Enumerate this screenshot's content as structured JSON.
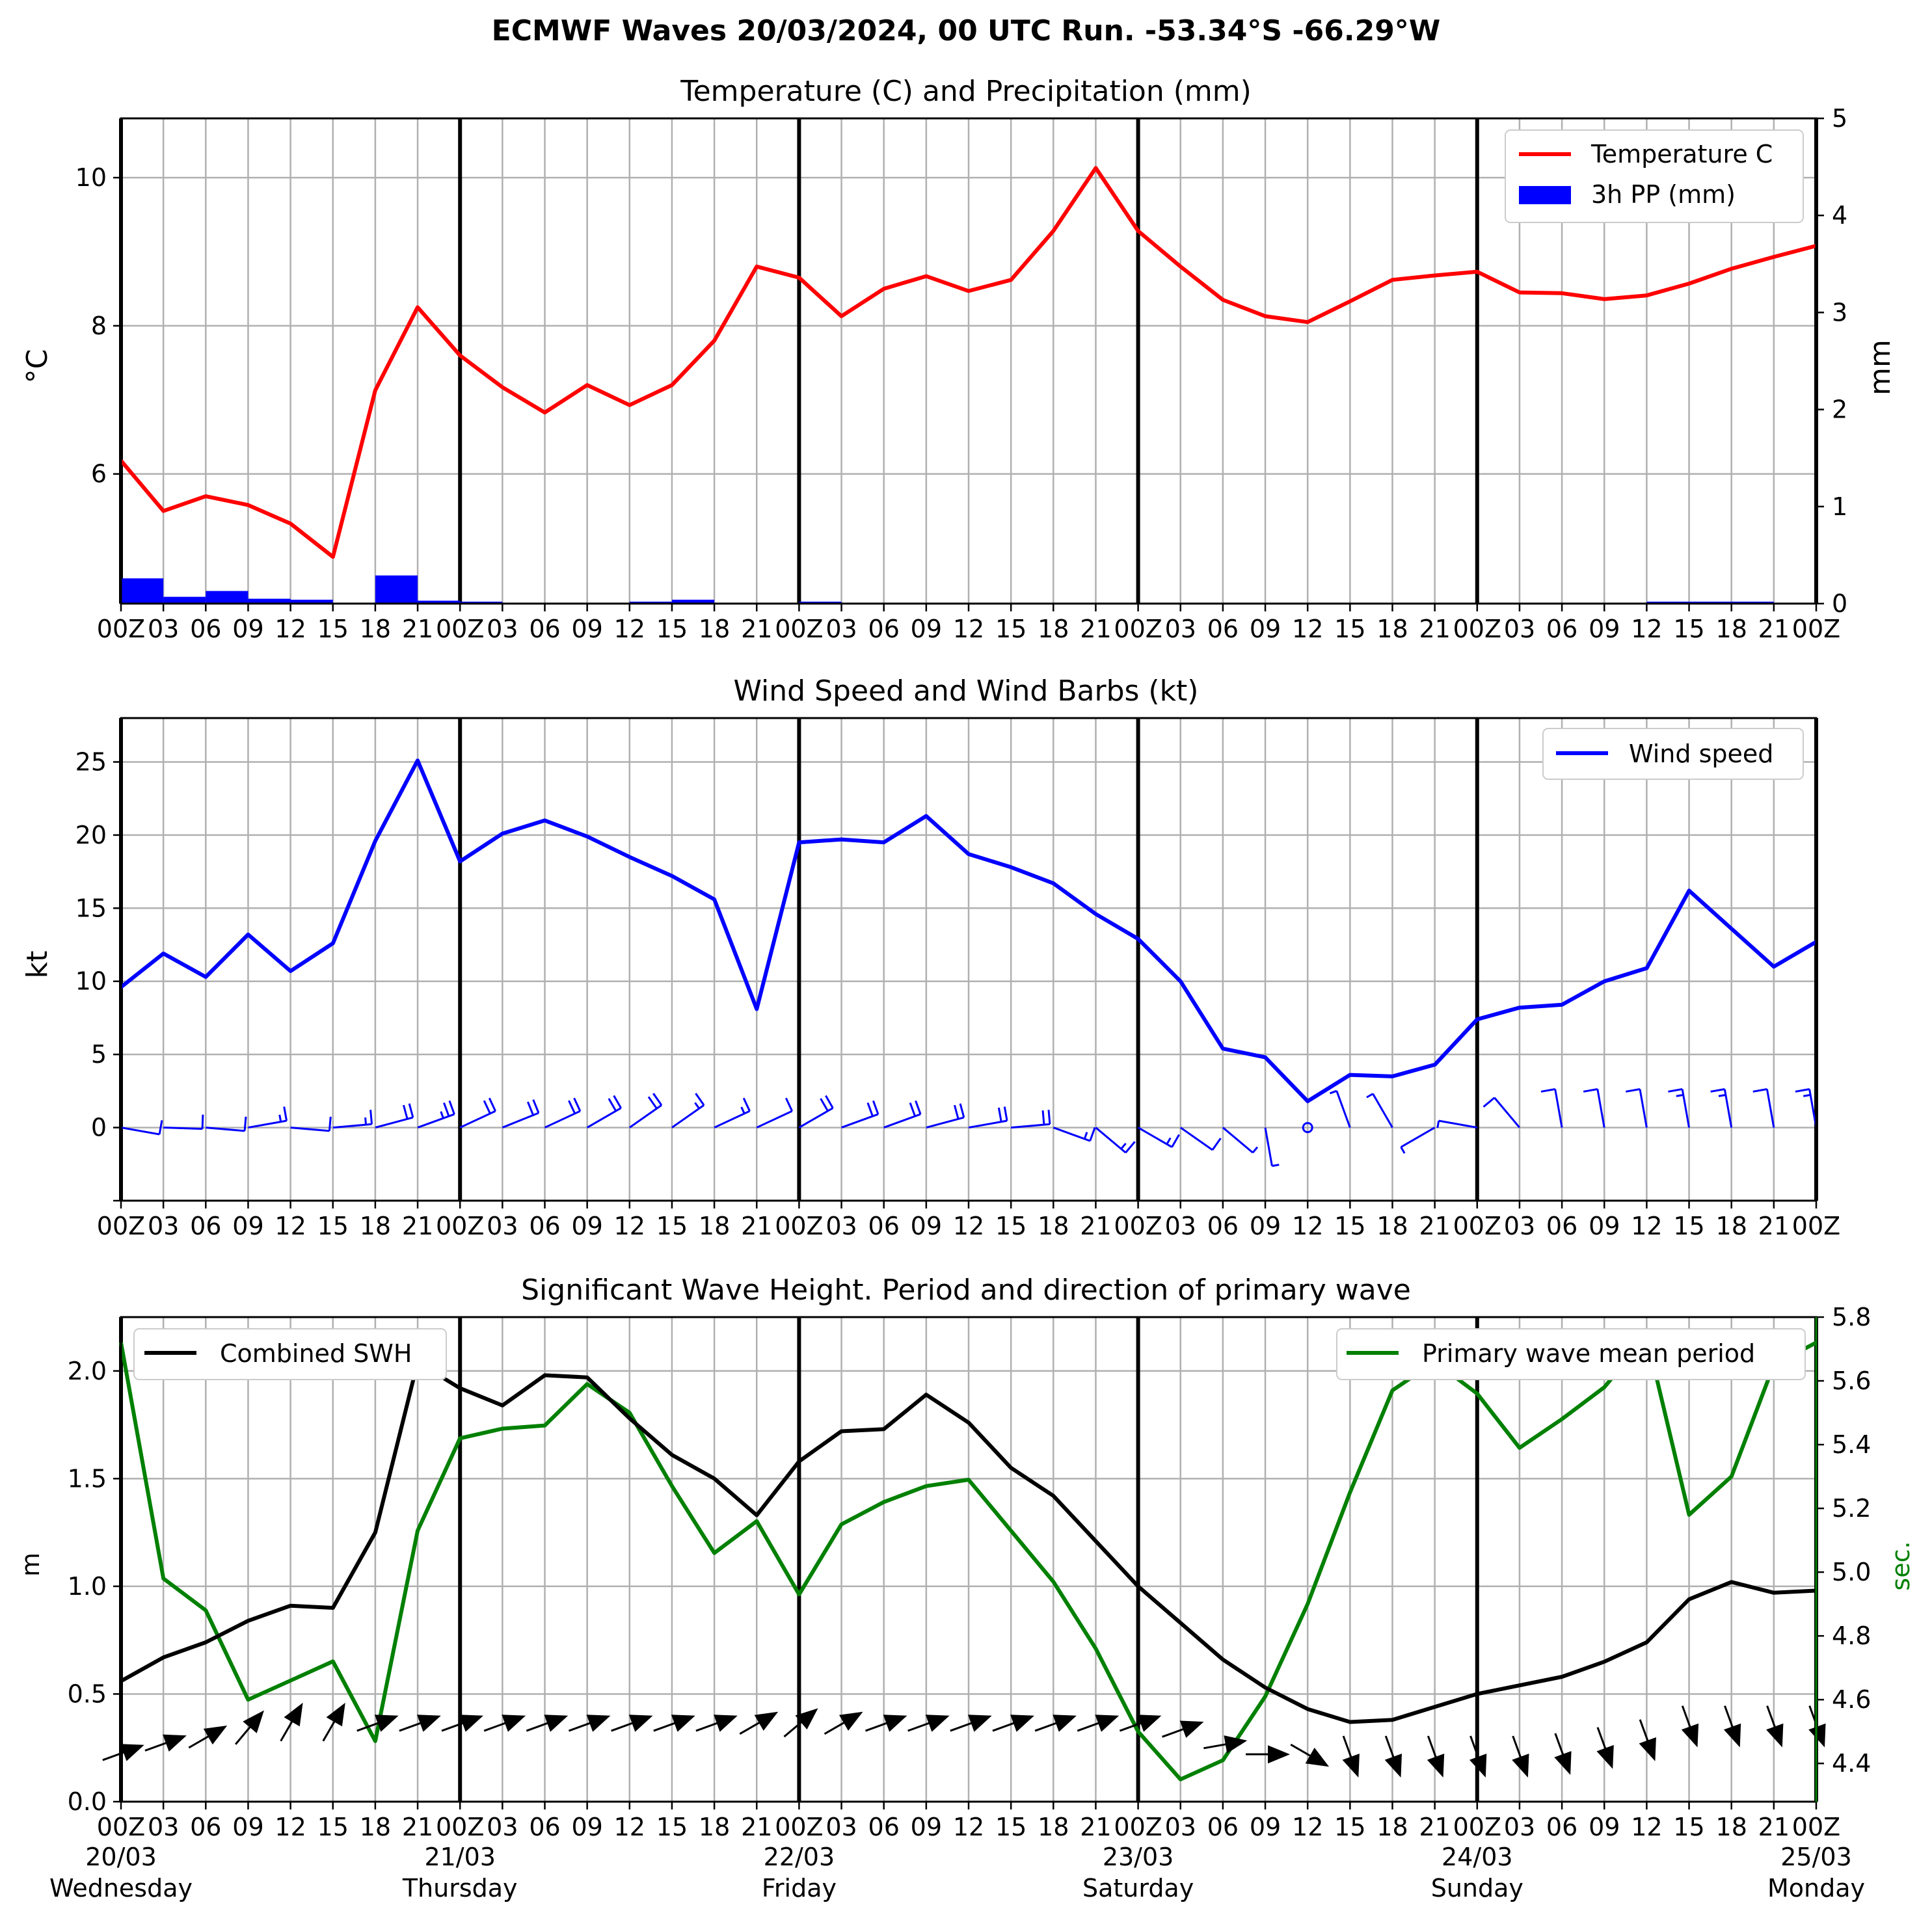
{
  "title": "ECMWF Waves 20/03/2024, 00 UTC Run. -53.34°S -66.29°W",
  "time_ticks": [
    "00Z",
    "03",
    "06",
    "09",
    "12",
    "15",
    "18",
    "21",
    "00Z",
    "03",
    "06",
    "09",
    "12",
    "15",
    "18",
    "21",
    "00Z",
    "03",
    "06",
    "09",
    "12",
    "15",
    "18",
    "21",
    "00Z",
    "03",
    "06",
    "09",
    "12",
    "15",
    "18",
    "21",
    "00Z",
    "03",
    "06",
    "09",
    "12",
    "15",
    "18",
    "21",
    "00Z"
  ],
  "day_labels": [
    {
      "date": "20/03",
      "day": "Wednesday",
      "at": 0
    },
    {
      "date": "21/03",
      "day": "Thursday",
      "at": 24
    },
    {
      "date": "22/03",
      "day": "Friday",
      "at": 48
    },
    {
      "date": "23/03",
      "day": "Saturday",
      "at": 72
    },
    {
      "date": "24/03",
      "day": "Sunday",
      "at": 96
    },
    {
      "date": "25/03",
      "day": "Monday",
      "at": 120
    }
  ],
  "colors": {
    "temperature": "#ff0000",
    "precip": "#0000ff",
    "wind": "#0000ff",
    "swh": "#000000",
    "period": "#008000",
    "grid": "#b0b0b0"
  },
  "chart_data": [
    {
      "type": "line",
      "title": "Temperature (C) and Precipitation (mm)",
      "ylabel": "°C",
      "y2label": "mm",
      "ylim": [
        4.25,
        10.8
      ],
      "y2lim": [
        0,
        5
      ],
      "yticks": [
        6,
        8,
        10
      ],
      "y2ticks": [
        0,
        1,
        2,
        3,
        4,
        5
      ],
      "x_hours": [
        0,
        3,
        6,
        9,
        12,
        15,
        18,
        21,
        24,
        27,
        30,
        33,
        36,
        39,
        42,
        45,
        48,
        51,
        54,
        57,
        60,
        63,
        66,
        69,
        72,
        75,
        78,
        81,
        84,
        87,
        90,
        93,
        96,
        99,
        102,
        105,
        108,
        111,
        114,
        117,
        120
      ],
      "legend": "top-right",
      "series": [
        {
          "name": "Temperature C",
          "type": "line",
          "axis": "left",
          "values": [
            6.18,
            5.5,
            5.7,
            5.58,
            5.33,
            4.88,
            7.13,
            8.25,
            7.6,
            7.17,
            6.83,
            7.2,
            6.93,
            7.2,
            7.8,
            8.8,
            8.65,
            8.13,
            8.5,
            8.67,
            8.47,
            8.62,
            9.28,
            10.13,
            9.28,
            8.8,
            8.35,
            8.13,
            8.05,
            8.33,
            8.62,
            8.68,
            8.73,
            8.45,
            8.44,
            8.36,
            8.41,
            8.57,
            8.77,
            8.93,
            9.08
          ]
        },
        {
          "name": "3h PP (mm)",
          "type": "bar",
          "axis": "right",
          "values": [
            0.26,
            0.07,
            0.13,
            0.05,
            0.04,
            0.01,
            0.29,
            0.03,
            0.02,
            0,
            0,
            0,
            0.02,
            0.04,
            0,
            0,
            0.02,
            0,
            0,
            0,
            0,
            0,
            0,
            0,
            0,
            0,
            0,
            0,
            0,
            0,
            0,
            0,
            0,
            0,
            0,
            0,
            0.02,
            0.02,
            0.02,
            0
          ]
        }
      ]
    },
    {
      "type": "line",
      "title": "Wind Speed and Wind Barbs (kt)",
      "ylabel": "kt",
      "ylim": [
        -5,
        28
      ],
      "yticks": [
        0,
        5,
        10,
        15,
        20,
        25
      ],
      "x_hours": [
        0,
        3,
        6,
        9,
        12,
        15,
        18,
        21,
        24,
        27,
        30,
        33,
        36,
        39,
        42,
        45,
        48,
        51,
        54,
        57,
        60,
        63,
        66,
        69,
        72,
        75,
        78,
        81,
        84,
        87,
        90,
        93,
        96,
        99,
        102,
        105,
        108,
        111,
        114,
        117,
        120
      ],
      "legend": "top-right",
      "series": [
        {
          "name": "Wind speed",
          "values": [
            9.6,
            11.9,
            10.3,
            13.2,
            10.7,
            12.6,
            19.6,
            25.1,
            18.2,
            20.1,
            21.0,
            19.9,
            18.5,
            17.2,
            15.6,
            8.1,
            19.5,
            19.7,
            19.5,
            21.3,
            18.7,
            17.8,
            16.7,
            14.6,
            12.9,
            10.0,
            5.4,
            4.8,
            1.8,
            3.6,
            3.5,
            4.3,
            7.4,
            8.2,
            8.4,
            10.0,
            10.9,
            16.2,
            13.6,
            11.0,
            12.7
          ]
        }
      ],
      "barb_directions_deg": [
        80,
        88,
        85,
        100,
        85,
        95,
        105,
        110,
        115,
        112,
        115,
        120,
        125,
        125,
        115,
        115,
        120,
        110,
        110,
        105,
        100,
        95,
        70,
        50,
        60,
        55,
        50,
        10,
        0,
        200,
        210,
        300,
        260,
        220,
        190,
        190,
        190,
        190,
        190,
        190,
        190
      ]
    },
    {
      "type": "line",
      "title": "Significant Wave Height. Period and direction of primary wave",
      "ylabel": "m",
      "y2label": "sec.",
      "ylim": [
        0,
        2.25
      ],
      "y2lim": [
        4.28,
        5.8
      ],
      "yticks": [
        0.0,
        0.5,
        1.0,
        1.5,
        2.0
      ],
      "y2ticks": [
        4.4,
        4.6,
        4.8,
        5.0,
        5.2,
        5.4,
        5.6,
        5.8
      ],
      "x_hours": [
        0,
        3,
        6,
        9,
        12,
        15,
        18,
        21,
        24,
        27,
        30,
        33,
        36,
        39,
        42,
        45,
        48,
        51,
        54,
        57,
        60,
        63,
        66,
        69,
        72,
        75,
        78,
        81,
        84,
        87,
        90,
        93,
        96,
        99,
        102,
        105,
        108,
        111,
        114,
        117,
        120
      ],
      "series": [
        {
          "name": "Combined SWH",
          "axis": "left",
          "legend": "top-left",
          "values": [
            0.56,
            0.67,
            0.74,
            0.84,
            0.91,
            0.9,
            1.25,
            2.04,
            1.92,
            1.84,
            1.98,
            1.97,
            1.78,
            1.61,
            1.5,
            1.33,
            1.58,
            1.72,
            1.73,
            1.89,
            1.76,
            1.55,
            1.42,
            1.21,
            1.0,
            0.83,
            0.66,
            0.53,
            0.43,
            0.37,
            0.38,
            0.44,
            0.5,
            0.54,
            0.58,
            0.65,
            0.74,
            0.94,
            1.02,
            0.97,
            0.98
          ]
        },
        {
          "name": "Primary wave mean period",
          "axis": "right",
          "legend": "top-right",
          "values": [
            5.72,
            4.98,
            4.88,
            4.6,
            4.66,
            4.72,
            4.47,
            5.13,
            5.42,
            5.45,
            5.46,
            5.59,
            5.5,
            5.27,
            5.06,
            5.16,
            4.93,
            5.15,
            5.22,
            5.27,
            5.29,
            5.13,
            4.97,
            4.76,
            4.5,
            4.35,
            4.41,
            4.61,
            4.9,
            5.25,
            5.57,
            5.66,
            5.56,
            5.39,
            5.48,
            5.58,
            5.74,
            5.18,
            5.3,
            5.65,
            5.72
          ]
        }
      ],
      "wave_directions_deg": [
        110,
        110,
        120,
        140,
        150,
        150,
        110,
        110,
        110,
        110,
        110,
        110,
        110,
        110,
        110,
        120,
        130,
        120,
        110,
        110,
        110,
        110,
        110,
        110,
        110,
        110,
        100,
        90,
        60,
        20,
        20,
        20,
        20,
        20,
        20,
        20,
        20,
        20,
        20,
        20,
        20
      ]
    }
  ]
}
